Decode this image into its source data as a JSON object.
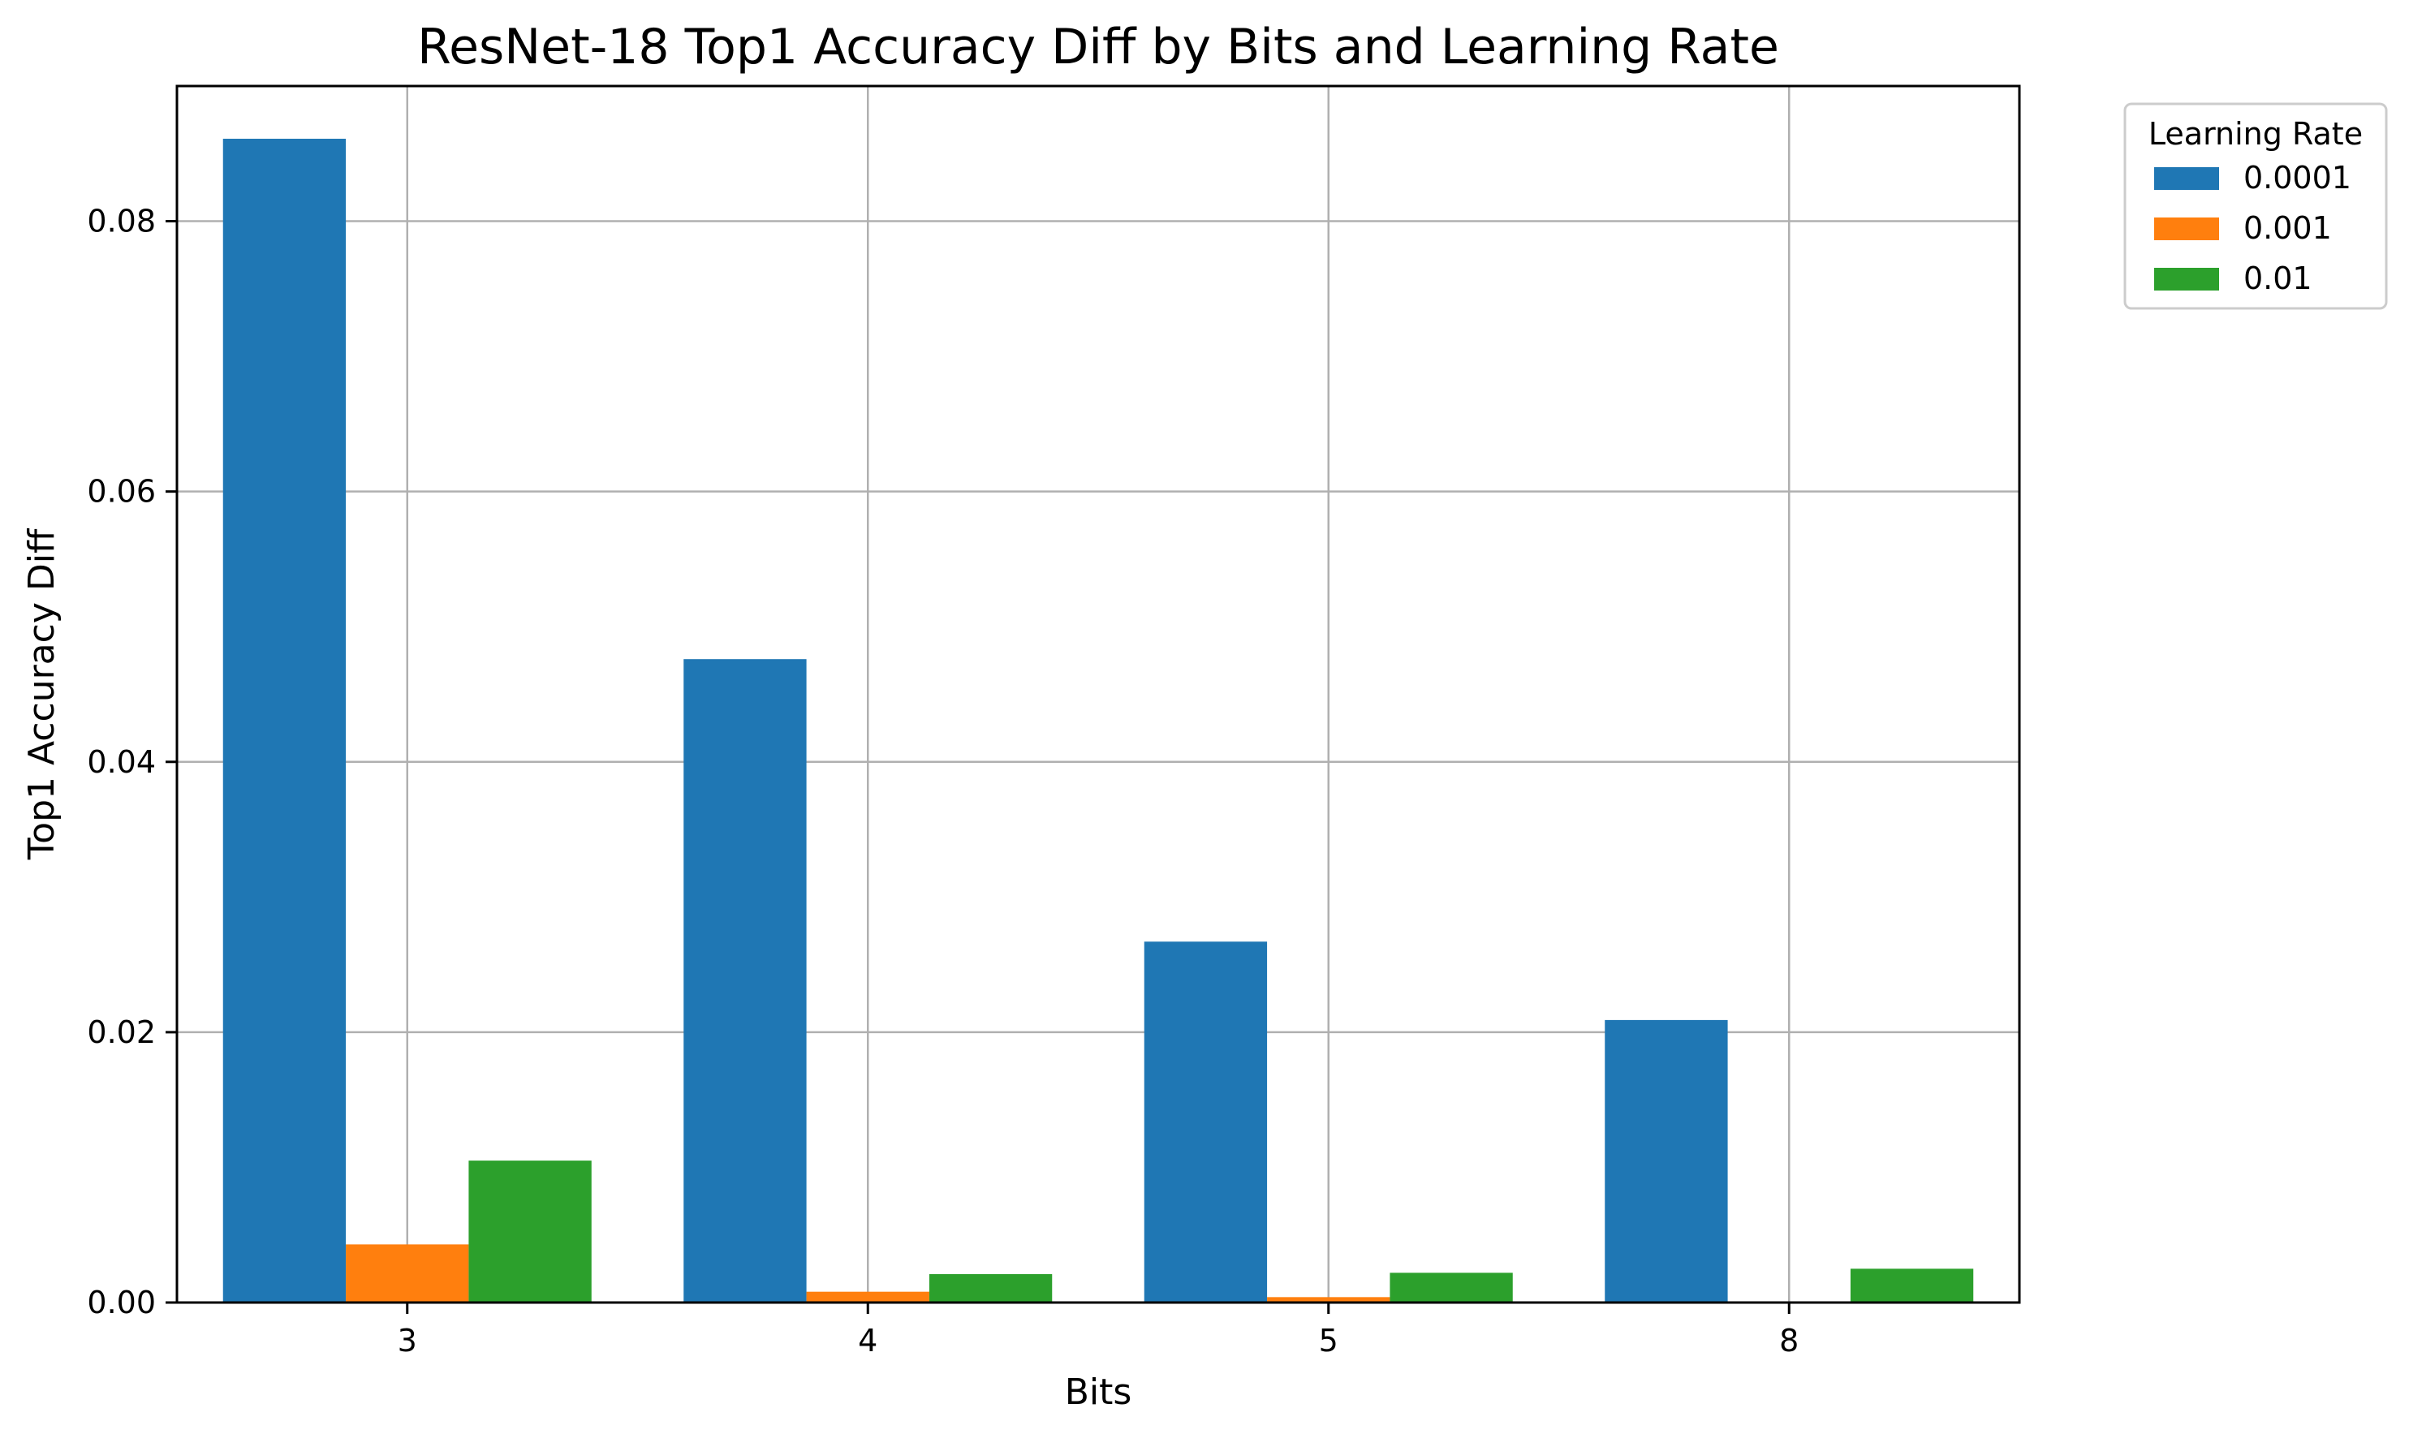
{
  "chart_data": {
    "type": "bar",
    "title": "ResNet-18 Top1 Accuracy Diff by Bits and Learning Rate",
    "xlabel": "Bits",
    "ylabel": "Top1 Accuracy Diff",
    "categories": [
      "3",
      "4",
      "5",
      "8"
    ],
    "series": [
      {
        "name": "0.0001",
        "values": [
          0.0861,
          0.0476,
          0.0267,
          0.0209
        ],
        "color": "#1f77b4"
      },
      {
        "name": "0.001",
        "values": [
          0.0043,
          0.0008,
          0.0004,
          0.0
        ],
        "color": "#ff7f0e"
      },
      {
        "name": "0.01",
        "values": [
          0.0105,
          0.0021,
          0.0022,
          0.0025
        ],
        "color": "#2ca02c"
      }
    ],
    "ylim": [
      0,
      0.09
    ],
    "yticks": [
      0.0,
      0.02,
      0.04,
      0.06,
      0.08
    ],
    "ytick_labels": [
      "0.00",
      "0.02",
      "0.04",
      "0.06",
      "0.08"
    ],
    "grid": true,
    "legend": {
      "title": "Learning Rate",
      "placement": "outside-top-right"
    }
  }
}
